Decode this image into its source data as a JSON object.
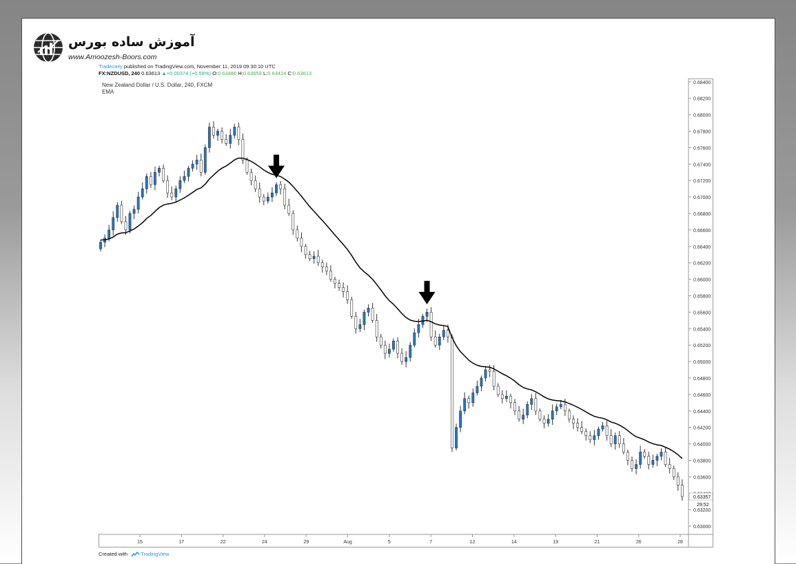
{
  "branding": {
    "site_name_fa": "آموزش ساده بورس",
    "site_url": "www.Amoozesh-Boors.com"
  },
  "header": {
    "author": "Tradeciety",
    "published_text": "published on TradingView.com, November 11, 2019 09:30:10 UTC",
    "symbol": "FX:NZDUSD, 240",
    "last": "0.63613",
    "change_arrow": "▲",
    "change": "+0.00374 (+0.59%)",
    "o_label": "O:",
    "o": "0.63486",
    "h_label": "H:",
    "h": "0.63659",
    "l_label": "L:",
    "l": "0.63424",
    "c_label": "C:",
    "c": "0.63613"
  },
  "footer": {
    "created_with": "Created with",
    "brand": "TradingView"
  },
  "chart_data": {
    "type": "candlestick",
    "title": "New Zealand Dollar / U.S. Dollar, 240, FXCM",
    "indicator": "EMA",
    "ylim": [
      0.629,
      0.6844
    ],
    "y_ticks": [
      0.684,
      0.682,
      0.68,
      0.678,
      0.676,
      0.674,
      0.672,
      0.67,
      0.668,
      0.666,
      0.664,
      0.662,
      0.66,
      0.658,
      0.656,
      0.654,
      0.652,
      0.65,
      0.648,
      0.646,
      0.644,
      0.642,
      0.64,
      0.638,
      0.636,
      0.634,
      0.632,
      0.63
    ],
    "x_ticks": [
      "15",
      "17",
      "22",
      "24",
      "29",
      "Aug",
      "5",
      "7",
      "12",
      "14",
      "19",
      "21",
      "26",
      "28"
    ],
    "last_price_label": "0.63357",
    "countdown_label": "29:52",
    "colors": {
      "up": "#1e78d2",
      "down": "#ffffff",
      "outline": "#333333",
      "ema": "#000000",
      "arrow": "#000000"
    },
    "arrows": [
      {
        "bar_index": 42,
        "note": "first arrow"
      },
      {
        "bar_index": 78,
        "note": "second arrow"
      }
    ],
    "close_series": [
      0.6645,
      0.665,
      0.666,
      0.6675,
      0.669,
      0.667,
      0.666,
      0.668,
      0.6685,
      0.67,
      0.671,
      0.6725,
      0.6715,
      0.673,
      0.6735,
      0.672,
      0.6705,
      0.67,
      0.671,
      0.672,
      0.6725,
      0.6735,
      0.674,
      0.6745,
      0.673,
      0.676,
      0.6785,
      0.6775,
      0.678,
      0.677,
      0.6765,
      0.6775,
      0.6785,
      0.677,
      0.6745,
      0.673,
      0.672,
      0.671,
      0.67,
      0.6695,
      0.67,
      0.6705,
      0.6715,
      0.671,
      0.669,
      0.668,
      0.666,
      0.665,
      0.664,
      0.663,
      0.6625,
      0.6628,
      0.662,
      0.6615,
      0.661,
      0.66,
      0.6595,
      0.659,
      0.6585,
      0.6575,
      0.6555,
      0.654,
      0.6545,
      0.656,
      0.6565,
      0.655,
      0.653,
      0.652,
      0.651,
      0.6515,
      0.6525,
      0.651,
      0.65,
      0.6505,
      0.652,
      0.6535,
      0.6545,
      0.6555,
      0.656,
      0.653,
      0.652,
      0.653,
      0.6538,
      0.653,
      0.6395,
      0.642,
      0.644,
      0.6455,
      0.645,
      0.6462,
      0.647,
      0.648,
      0.649,
      0.6488,
      0.647,
      0.646,
      0.6455,
      0.6458,
      0.645,
      0.644,
      0.643,
      0.6435,
      0.6448,
      0.6455,
      0.644,
      0.643,
      0.6425,
      0.643,
      0.644,
      0.6445,
      0.6448,
      0.644,
      0.643,
      0.6425,
      0.642,
      0.6415,
      0.641,
      0.6405,
      0.641,
      0.6418,
      0.6422,
      0.641,
      0.64,
      0.641,
      0.64,
      0.639,
      0.638,
      0.637,
      0.6375,
      0.639,
      0.6385,
      0.6375,
      0.638,
      0.6385,
      0.639,
      0.6375,
      0.637,
      0.636,
      0.635,
      0.6336
    ]
  }
}
